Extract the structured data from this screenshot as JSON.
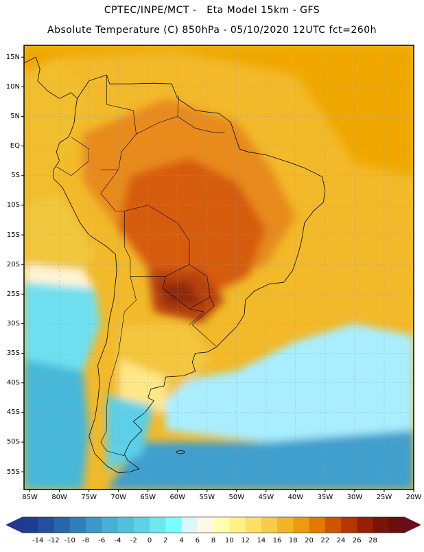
{
  "header": {
    "line1": "CPTEC/INPE/MCT -   Eta Model 15km - GFS",
    "line2": "Absolute Temperature (C) 850hPa - 05/10/2020 12UTC fct=260h"
  },
  "map": {
    "lat_range": [
      -58,
      17
    ],
    "lon_range": [
      -86,
      -20
    ],
    "lat_labels": [
      {
        "lat": 15,
        "label": "15N"
      },
      {
        "lat": 10,
        "label": "10N"
      },
      {
        "lat": 5,
        "label": "5N"
      },
      {
        "lat": 0,
        "label": "EQ"
      },
      {
        "lat": -5,
        "label": "5S"
      },
      {
        "lat": -10,
        "label": "10S"
      },
      {
        "lat": -15,
        "label": "15S"
      },
      {
        "lat": -20,
        "label": "20S"
      },
      {
        "lat": -25,
        "label": "25S"
      },
      {
        "lat": -30,
        "label": "30S"
      },
      {
        "lat": -35,
        "label": "35S"
      },
      {
        "lat": -40,
        "label": "40S"
      },
      {
        "lat": -45,
        "label": "45S"
      },
      {
        "lat": -50,
        "label": "50S"
      },
      {
        "lat": -55,
        "label": "55S"
      }
    ],
    "lon_labels": [
      {
        "lon": -85,
        "label": "85W"
      },
      {
        "lon": -80,
        "label": "80W"
      },
      {
        "lon": -75,
        "label": "75W"
      },
      {
        "lon": -70,
        "label": "70W"
      },
      {
        "lon": -65,
        "label": "65W"
      },
      {
        "lon": -60,
        "label": "60W"
      },
      {
        "lon": -55,
        "label": "55W"
      },
      {
        "lon": -50,
        "label": "50W"
      },
      {
        "lon": -45,
        "label": "45W"
      },
      {
        "lon": -40,
        "label": "40W"
      },
      {
        "lon": -35,
        "label": "35W"
      },
      {
        "lon": -30,
        "label": "30W"
      },
      {
        "lon": -25,
        "label": "25W"
      },
      {
        "lon": -20,
        "label": "20W"
      }
    ],
    "temperature_zones": [
      {
        "name": "north-atlantic-warm",
        "level": 18,
        "color": "#f0a800",
        "poly": [
          [
            -86,
            17
          ],
          [
            -20,
            17
          ],
          [
            -20,
            -5
          ],
          [
            -30,
            -3
          ],
          [
            -35,
            5
          ],
          [
            -40,
            12
          ],
          [
            -60,
            16
          ],
          [
            -80,
            15
          ],
          [
            -86,
            12
          ]
        ]
      },
      {
        "name": "tropical-pacific-warm",
        "level": 16,
        "color": "#f0be2e",
        "poly": [
          [
            -86,
            12
          ],
          [
            -80,
            15
          ],
          [
            -75,
            8
          ],
          [
            -78,
            0
          ],
          [
            -81,
            -8
          ],
          [
            -86,
            -10
          ]
        ]
      },
      {
        "name": "pacific-mid",
        "level": 14,
        "color": "#f0c83c",
        "poly": [
          [
            -86,
            -10
          ],
          [
            -80,
            -8
          ],
          [
            -74,
            -18
          ],
          [
            -76,
            -22
          ],
          [
            -86,
            -20
          ]
        ]
      },
      {
        "name": "pacific-mild",
        "level": 8,
        "color": "#fff5d8",
        "poly": [
          [
            -86,
            -20
          ],
          [
            -76,
            -21
          ],
          [
            -74,
            -24
          ],
          [
            -86,
            -23
          ]
        ]
      },
      {
        "name": "pacific-cool",
        "level": 2,
        "color": "#70e0f0",
        "poly": [
          [
            -86,
            -23
          ],
          [
            -74,
            -24
          ],
          [
            -73,
            -30
          ],
          [
            -76,
            -38
          ],
          [
            -86,
            -36
          ]
        ]
      },
      {
        "name": "pacific-cold",
        "level": -2,
        "color": "#47b8d9",
        "poly": [
          [
            -86,
            -36
          ],
          [
            -76,
            -38
          ],
          [
            -75,
            -48
          ],
          [
            -76,
            -58
          ],
          [
            -86,
            -58
          ]
        ]
      },
      {
        "name": "south-atlantic-cool",
        "level": 4,
        "color": "#a8eeff",
        "poly": [
          [
            -62,
            -40
          ],
          [
            -50,
            -38
          ],
          [
            -40,
            -33
          ],
          [
            -30,
            -30
          ],
          [
            -20,
            -32
          ],
          [
            -20,
            -48
          ],
          [
            -45,
            -50
          ],
          [
            -62,
            -48
          ]
        ]
      },
      {
        "name": "south-atlantic-cold",
        "level": -4,
        "color": "#3f9fcd",
        "poly": [
          [
            -66,
            -50
          ],
          [
            -45,
            -50
          ],
          [
            -20,
            -48
          ],
          [
            -20,
            -58
          ],
          [
            -72,
            -58
          ]
        ]
      },
      {
        "name": "argentina-warm",
        "level": 16,
        "color": "#f3c640",
        "poly": [
          [
            -70,
            -30
          ],
          [
            -58,
            -30
          ],
          [
            -54,
            -36
          ],
          [
            -62,
            -43
          ],
          [
            -70,
            -40
          ]
        ]
      },
      {
        "name": "argentina-mild",
        "level": 10,
        "color": "#ffe78a",
        "poly": [
          [
            -70,
            -36
          ],
          [
            -62,
            -39
          ],
          [
            -62,
            -45
          ],
          [
            -70,
            -45
          ]
        ]
      },
      {
        "name": "patagonia-cool",
        "level": 0,
        "color": "#5cd0e8",
        "poly": [
          [
            -72,
            -42
          ],
          [
            -64,
            -44
          ],
          [
            -66,
            -52
          ],
          [
            -72,
            -55
          ]
        ]
      },
      {
        "name": "amazon-hot",
        "level": 20,
        "color": "#e88a1a",
        "poly": [
          [
            -76,
            2
          ],
          [
            -62,
            8
          ],
          [
            -50,
            4
          ],
          [
            -44,
            -4
          ],
          [
            -40,
            -12
          ],
          [
            -45,
            -20
          ],
          [
            -55,
            -24
          ],
          [
            -64,
            -22
          ],
          [
            -70,
            -14
          ],
          [
            -76,
            -6
          ]
        ]
      },
      {
        "name": "central-core-hot",
        "level": 22,
        "color": "#d65c0c",
        "poly": [
          [
            -68,
            -5
          ],
          [
            -58,
            -2
          ],
          [
            -50,
            -6
          ],
          [
            -45,
            -14
          ],
          [
            -48,
            -22
          ],
          [
            -56,
            -26
          ],
          [
            -64,
            -22
          ],
          [
            -70,
            -14
          ]
        ]
      },
      {
        "name": "chaco-core",
        "level": 24,
        "color": "#b8420a",
        "poly": [
          [
            -65,
            -21
          ],
          [
            -56,
            -21
          ],
          [
            -52,
            -26
          ],
          [
            -56,
            -30
          ],
          [
            -64,
            -28
          ]
        ]
      },
      {
        "name": "chaco-max",
        "level": 26,
        "color": "#8e2a08",
        "poly": [
          [
            -63,
            -23
          ],
          [
            -58,
            -23
          ],
          [
            -56,
            -27
          ],
          [
            -62,
            -27
          ]
        ]
      }
    ],
    "colors": {
      "coastline": "#000000",
      "gridline": "#9a9a9a",
      "frame": "#000000"
    }
  },
  "colorbar": {
    "levels": [
      -14,
      -12,
      -10,
      -8,
      -6,
      -4,
      -2,
      0,
      2,
      4,
      6,
      8,
      10,
      12,
      14,
      16,
      18,
      20,
      22,
      24,
      26,
      28
    ],
    "labels": [
      "-14",
      "-12",
      "-10",
      "-8",
      "-6",
      "-4",
      "-2",
      "0",
      "2",
      "4",
      "6",
      "8",
      "10",
      "12",
      "14",
      "16",
      "18",
      "20",
      "22",
      "24",
      "26",
      "28"
    ],
    "colors": [
      "#1e3c96",
      "#224f9e",
      "#2766aa",
      "#2f7fb9",
      "#3b98c8",
      "#47aed4",
      "#52c0dc",
      "#5dd2e6",
      "#6ee6f0",
      "#78ffff",
      "#d8f7ff",
      "#fff8e4",
      "#ffffb0",
      "#fff088",
      "#fee066",
      "#f8cc48",
      "#f3b428",
      "#eb9c0c",
      "#e37a00",
      "#d05400",
      "#b83400",
      "#981e06",
      "#7a1408",
      "#6a0e10"
    ],
    "under_color": "#213a8c",
    "over_color": "#6e0a1e"
  }
}
